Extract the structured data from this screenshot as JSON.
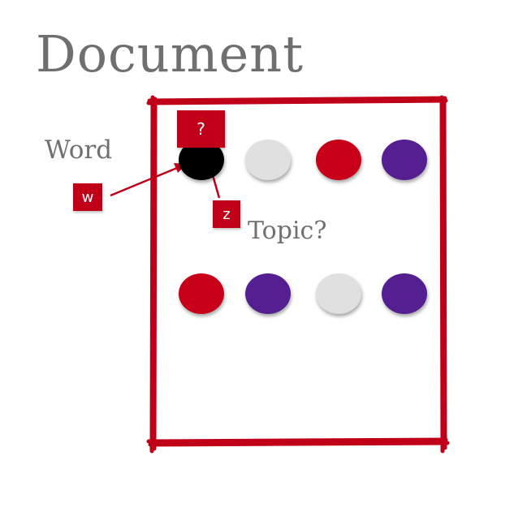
{
  "title": "Document",
  "word_label": "Word",
  "topic_label": "Topic?",
  "labels": {
    "question": "?",
    "w": "w",
    "z": "z"
  },
  "colors": {
    "frame": "#c00018",
    "label_bg": "#c00018",
    "black": "#000000",
    "gray": "#e0e0e0",
    "red": "#c8001a",
    "purple": "#551f91"
  },
  "rows": [
    [
      "black",
      "gray",
      "red",
      "purple"
    ],
    [
      "red",
      "purple",
      "gray",
      "purple"
    ]
  ]
}
